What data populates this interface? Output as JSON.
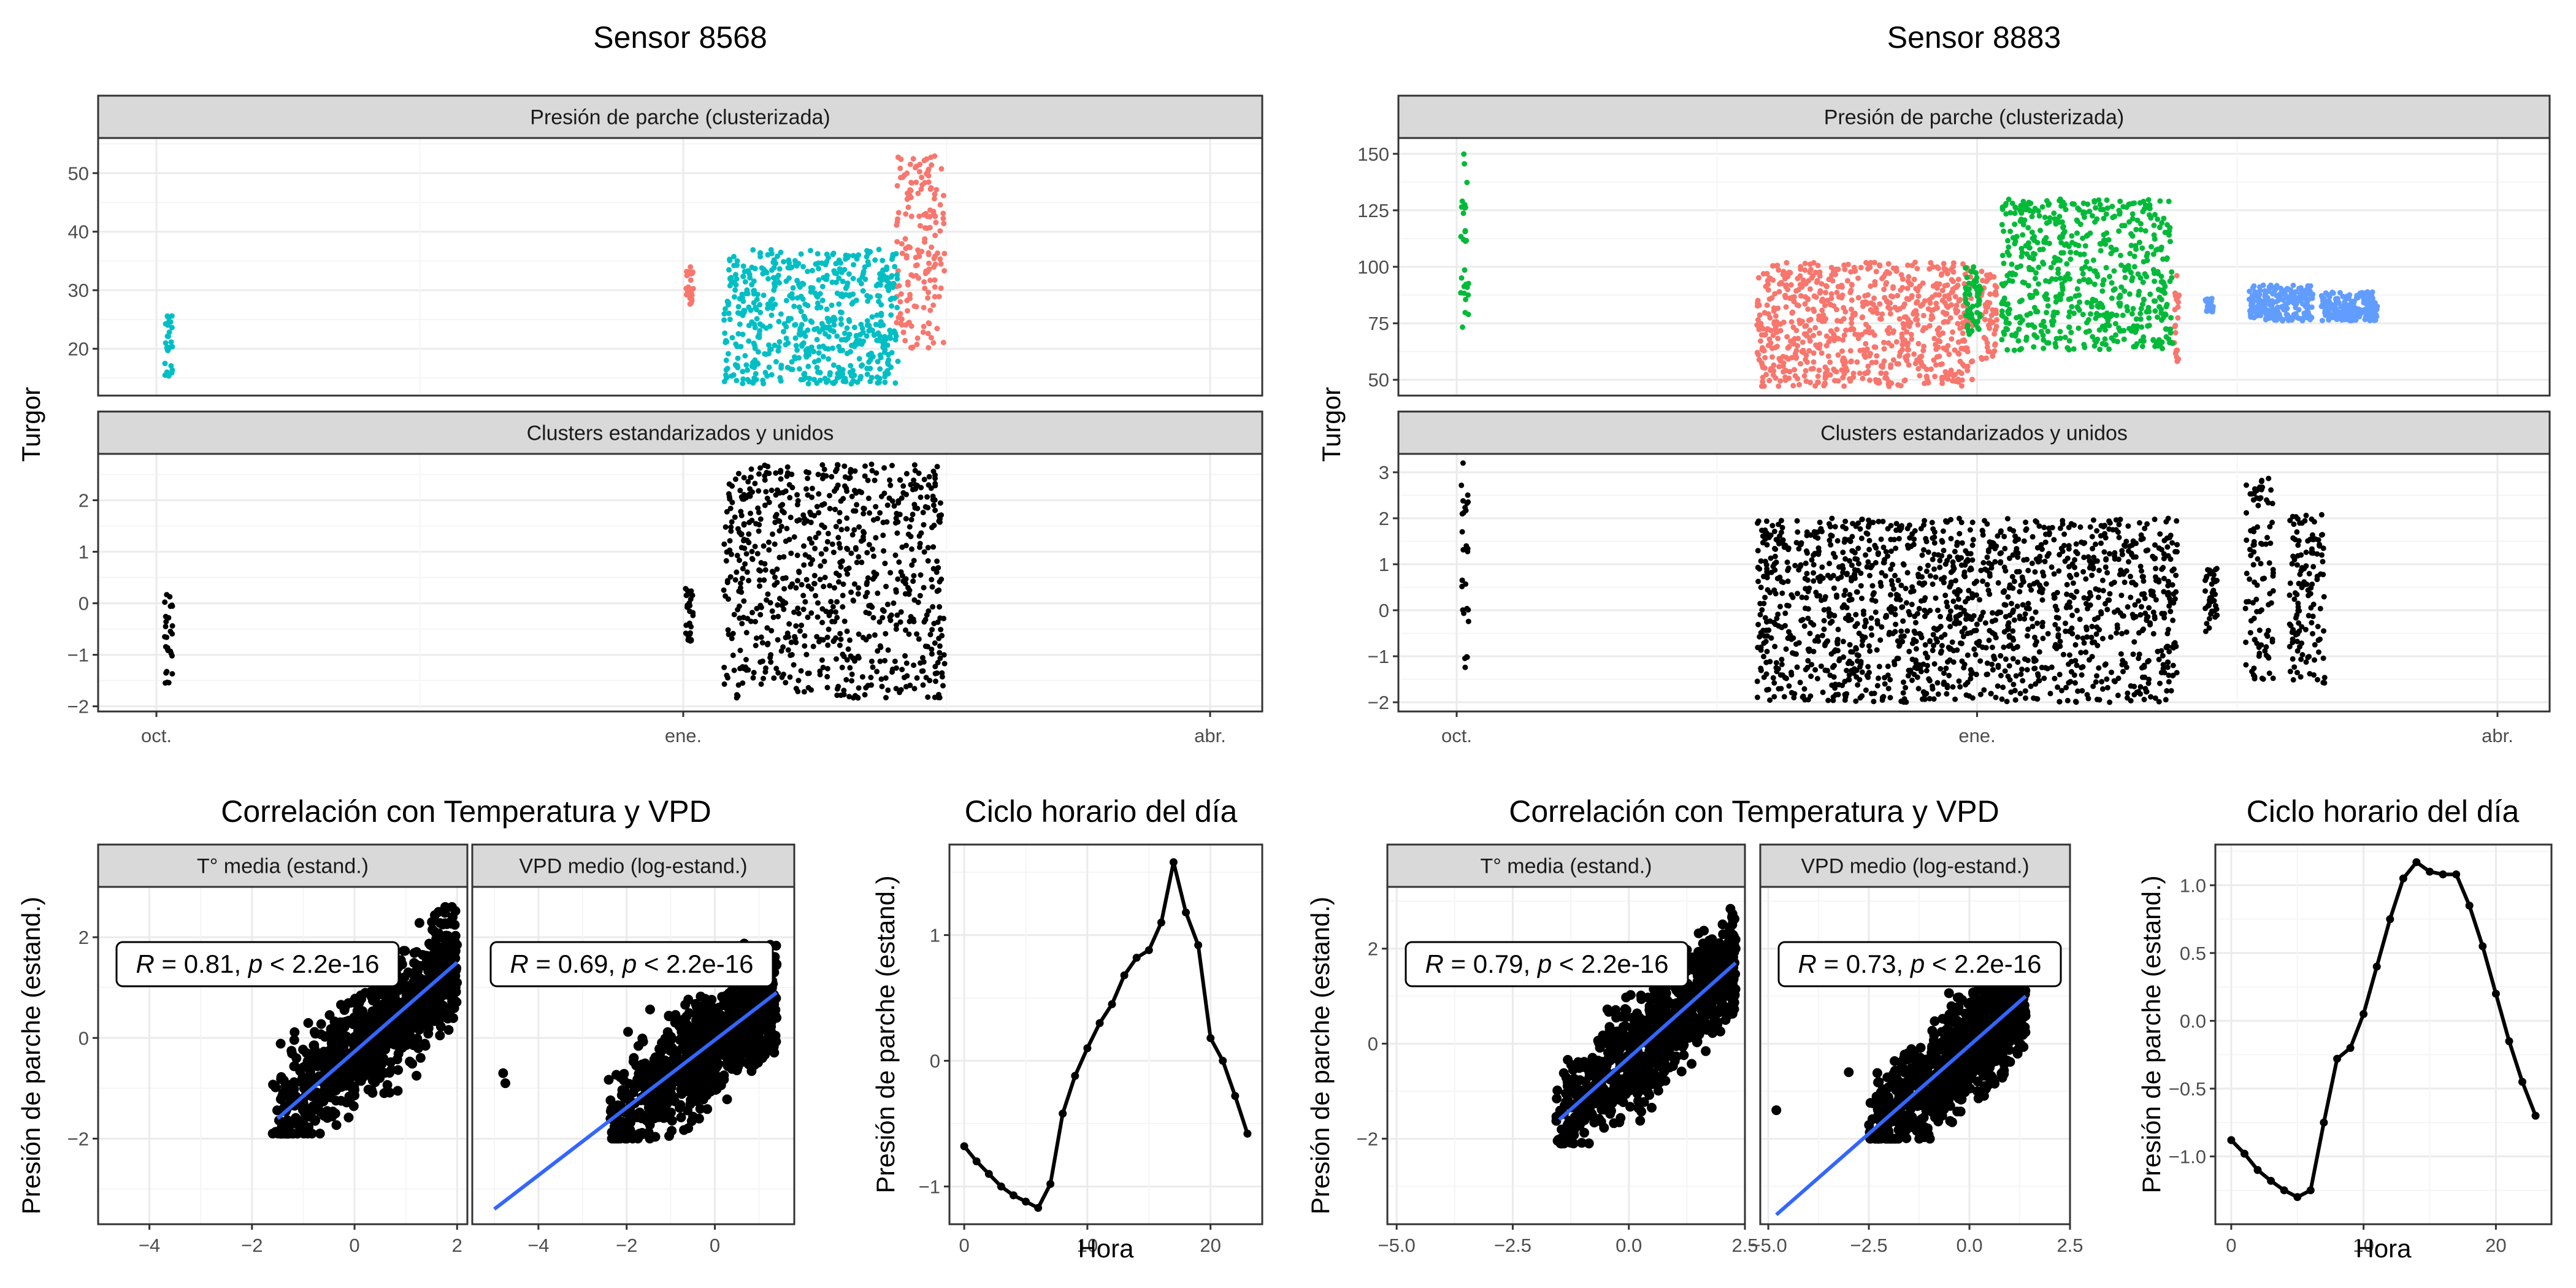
{
  "chart_data": [
    {
      "type": "scatter",
      "title": "Sensor 8568",
      "ylabel": "Turgor",
      "x_ticks": [
        "oct.",
        "ene.",
        "abr."
      ],
      "facets": [
        {
          "strip": "Presión de parche (clusterizada)",
          "ylim": [
            12,
            56
          ],
          "y_ticks": [
            20,
            30,
            40,
            50
          ],
          "series": [
            {
              "color": "#F8766D",
              "groups": [
                {
                  "x": [
                    130.5,
                    132.5
                  ],
                  "ymin": 27,
                  "ymax": 34
                },
                {
                  "x": [
                    182.5,
                    194.5
                  ],
                  "ymin": 20,
                  "ymax": 53
                }
              ]
            },
            {
              "color": "#00BFC4",
              "groups": [
                {
                  "x": [
                    2,
                    4
                  ],
                  "ymin": 15,
                  "ymax": 26
                },
                {
                  "x": [
                    140,
                    183
                  ],
                  "ymin": 14,
                  "ymax": 37
                }
              ]
            }
          ]
        },
        {
          "strip": "Clusters estandarizados y unidos",
          "ylim": [
            -2.1,
            2.9
          ],
          "y_ticks": [
            -2,
            -1,
            0,
            1,
            2
          ],
          "series": [
            {
              "color": "#000000",
              "groups": [
                {
                  "x": [
                    2,
                    4
                  ],
                  "ymin": -1.55,
                  "ymax": 0.25
                },
                {
                  "x": [
                    130.5,
                    132.5
                  ],
                  "ymin": -0.75,
                  "ymax": 0.3
                },
                {
                  "x": [
                    140,
                    194.5
                  ],
                  "ymin": -1.85,
                  "ymax": 2.7
                }
              ]
            }
          ]
        }
      ]
    },
    {
      "type": "scatter",
      "title": "Sensor 8883",
      "ylabel": "Turgor",
      "x_ticks": [
        "oct.",
        "ene.",
        "abr."
      ],
      "facets": [
        {
          "strip": "Presión de parche (clusterizada)",
          "ylim": [
            43,
            157
          ],
          "y_ticks": [
            50,
            75,
            100,
            125,
            150
          ],
          "series": [
            {
              "color": "#F8766D",
              "groups": [
                {
                  "x": [
                    75,
                    129
                  ],
                  "ymin": 47,
                  "ymax": 102
                },
                {
                  "x": [
                    131,
                    135
                  ],
                  "ymin": 58,
                  "ymax": 98
                },
                {
                  "x": [
                    179,
                    180.5
                  ],
                  "ymin": 58,
                  "ymax": 98
                }
              ]
            },
            {
              "color": "#00BA38",
              "groups": [
                {
                  "x": [
                    1,
                    3
                  ],
                  "ymin": 70,
                  "ymax": 150
                },
                {
                  "x": [
                    127,
                    131
                  ],
                  "ymin": 70,
                  "ymax": 100
                },
                {
                  "x": [
                    136,
                    179
                  ],
                  "ymin": 63,
                  "ymax": 130
                }
              ]
            },
            {
              "color": "#619CFF",
              "groups": [
                {
                  "x": [
                    187,
                    189
                  ],
                  "ymin": 80,
                  "ymax": 86
                },
                {
                  "x": [
                    198,
                    214
                  ],
                  "ymin": 76,
                  "ymax": 92
                },
                {
                  "x": [
                    216,
                    230
                  ],
                  "ymin": 76,
                  "ymax": 89
                }
              ]
            }
          ]
        },
        {
          "strip": "Clusters estandarizados y unidos",
          "ylim": [
            -2.2,
            3.4
          ],
          "y_ticks": [
            -2,
            -1,
            0,
            1,
            2,
            3
          ],
          "series": [
            {
              "color": "#000000",
              "groups": [
                {
                  "x": [
                    1,
                    3
                  ],
                  "ymin": -1.3,
                  "ymax": 3.2
                },
                {
                  "x": [
                    75,
                    180
                  ],
                  "ymin": -2.0,
                  "ymax": 2.0
                },
                {
                  "x": [
                    187,
                    190
                  ],
                  "ymin": -0.5,
                  "ymax": 1.0
                },
                {
                  "x": [
                    197,
                    204
                  ],
                  "ymin": -1.5,
                  "ymax": 2.9
                },
                {
                  "x": [
                    208,
                    217
                  ],
                  "ymin": -1.6,
                  "ymax": 2.2
                }
              ]
            }
          ]
        }
      ]
    },
    {
      "type": "scatter",
      "title": "Correlación con Temperatura y VPD",
      "ylabel": "Presión de parche (estand.)",
      "ylim": [
        -3.7,
        3.0
      ],
      "y_ticks": [
        -2,
        0,
        2
      ],
      "panels": [
        {
          "strip": "T° media (estand.)",
          "stat_r": "0.81",
          "stat_p": "< 2.2e-16",
          "xlim": [
            -5.0,
            2.2
          ],
          "x_ticks": [
            -4,
            -2,
            0,
            2
          ],
          "points_x": [
            -1.6,
            2.0
          ],
          "points_y_range": [
            -1.9,
            2.6
          ],
          "fit": {
            "x": [
              -1.5,
              2.0
            ],
            "y": [
              -1.6,
              1.5
            ]
          }
        },
        {
          "strip": "VPD medio (log-estand.)",
          "stat_r": "0.69",
          "stat_p": "< 2.2e-16",
          "xlim": [
            -5.5,
            1.8
          ],
          "x_ticks": [
            -4,
            -2,
            0
          ],
          "outliers": [
            [
              -4.8,
              -0.7
            ],
            [
              -4.75,
              -0.9
            ]
          ],
          "points_x": [
            -2.5,
            1.4
          ],
          "points_y_range": [
            -2.0,
            2.6
          ],
          "fit": {
            "x": [
              -5.0,
              1.4
            ],
            "y": [
              -3.4,
              0.9
            ]
          }
        }
      ]
    },
    {
      "type": "line",
      "title": "Ciclo horario del día",
      "xlabel": "Hora",
      "ylabel": "Presión de parche (estand.)",
      "xlim": [
        -1.2,
        24.2
      ],
      "ylim": [
        -1.3,
        1.72
      ],
      "x_ticks": [
        0,
        10,
        20
      ],
      "y_ticks": [
        -1,
        0,
        1
      ],
      "x": [
        0,
        1,
        2,
        3,
        4,
        5,
        6,
        7,
        8,
        9,
        10,
        11,
        12,
        13,
        14,
        15,
        16,
        17,
        18,
        19,
        20,
        21,
        22,
        23
      ],
      "y": [
        -0.68,
        -0.8,
        -0.9,
        -1.0,
        -1.07,
        -1.12,
        -1.17,
        -0.98,
        -0.42,
        -0.12,
        0.1,
        0.3,
        0.45,
        0.68,
        0.82,
        0.88,
        1.1,
        1.58,
        1.18,
        0.92,
        0.18,
        0.0,
        -0.28,
        -0.58
      ]
    },
    {
      "type": "scatter",
      "title": "Correlación con Temperatura y VPD",
      "ylabel": "Presión de parche (estand.)",
      "ylim": [
        -3.8,
        3.3
      ],
      "y_ticks": [
        -2,
        0,
        2
      ],
      "panels": [
        {
          "strip": "T° media (estand.)",
          "stat_r": "0.79",
          "stat_p": "< 2.2e-16",
          "xlim": [
            -5.2,
            2.5
          ],
          "x_ticks": [
            -5.0,
            -2.5,
            0.0,
            2.5
          ],
          "points_x": [
            -1.6,
            2.3
          ],
          "points_y_range": [
            -2.1,
            3.1
          ],
          "fit": {
            "x": [
              -1.5,
              2.3
            ],
            "y": [
              -1.6,
              1.7
            ]
          }
        },
        {
          "strip": "VPD medio (log-estand.)",
          "stat_r": "0.73",
          "stat_p": "< 2.2e-16",
          "xlim": [
            -5.2,
            2.5
          ],
          "x_ticks": [
            -5.0,
            -2.5,
            0.0,
            2.5
          ],
          "outliers": [
            [
              -4.8,
              -1.4
            ],
            [
              -3.0,
              -0.6
            ]
          ],
          "points_x": [
            -2.5,
            1.4
          ],
          "points_y_range": [
            -2.0,
            3.0
          ],
          "fit": {
            "x": [
              -4.8,
              1.4
            ],
            "y": [
              -3.6,
              1.0
            ]
          }
        }
      ]
    },
    {
      "type": "line",
      "title": "Ciclo horario del día",
      "xlabel": "Hora",
      "ylabel": "Presión de parche (estand.)",
      "xlim": [
        -1.2,
        24.2
      ],
      "ylim": [
        -1.5,
        1.3
      ],
      "x_ticks": [
        0,
        10,
        20
      ],
      "y_ticks": [
        -1.0,
        -0.5,
        0.0,
        0.5,
        1.0
      ],
      "x": [
        0,
        1,
        2,
        3,
        4,
        5,
        6,
        7,
        8,
        9,
        10,
        11,
        12,
        13,
        14,
        15,
        16,
        17,
        18,
        19,
        20,
        21,
        22,
        23
      ],
      "y": [
        -0.88,
        -0.98,
        -1.1,
        -1.18,
        -1.25,
        -1.3,
        -1.25,
        -0.75,
        -0.28,
        -0.2,
        0.05,
        0.4,
        0.75,
        1.05,
        1.17,
        1.1,
        1.08,
        1.08,
        0.85,
        0.55,
        0.2,
        -0.15,
        -0.45,
        -0.7
      ]
    }
  ]
}
